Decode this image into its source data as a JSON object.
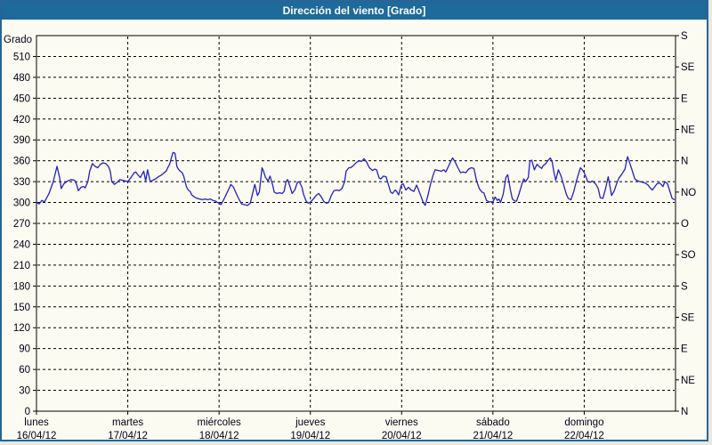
{
  "window": {
    "title": "Dirección del viento [Grado]"
  },
  "colors": {
    "titlebar_bg": "#1d6a9b",
    "titlebar_text": "#ffffff",
    "frame_border": "#2a6496",
    "background": "#fcfbf2",
    "grid": "#000000",
    "axis": "#000000",
    "tick_text": "#000014",
    "series_line": "#2222bb"
  },
  "chart_data": {
    "type": "line",
    "title": "Dirección del viento [Grado]",
    "ylabel_left": "Grado",
    "ylim": [
      0,
      540
    ],
    "y_left_ticks": [
      0,
      30,
      60,
      90,
      120,
      150,
      180,
      210,
      240,
      270,
      300,
      330,
      360,
      390,
      420,
      450,
      480,
      510
    ],
    "y_right_ticks": [
      {
        "deg": 540,
        "label": "S"
      },
      {
        "deg": 495,
        "label": "SE"
      },
      {
        "deg": 450,
        "label": "E"
      },
      {
        "deg": 405,
        "label": "NE"
      },
      {
        "deg": 360,
        "label": "N"
      },
      {
        "deg": 315,
        "label": "NO"
      },
      {
        "deg": 270,
        "label": "O"
      },
      {
        "deg": 225,
        "label": "SO"
      },
      {
        "deg": 180,
        "label": "S"
      },
      {
        "deg": 135,
        "label": "SE"
      },
      {
        "deg": 90,
        "label": "E"
      },
      {
        "deg": 45,
        "label": "NE"
      },
      {
        "deg": 0,
        "label": "N"
      }
    ],
    "x_days": [
      {
        "name": "lunes",
        "date": "16/04/12"
      },
      {
        "name": "martes",
        "date": "17/04/12"
      },
      {
        "name": "miércoles",
        "date": "18/04/12"
      },
      {
        "name": "jueves",
        "date": "19/04/12"
      },
      {
        "name": "viernes",
        "date": "20/04/12"
      },
      {
        "name": "sábado",
        "date": "21/04/12"
      },
      {
        "name": "domingo",
        "date": "22/04/12"
      }
    ],
    "x_range_hours": 168,
    "grid": "dashed",
    "legend": "none",
    "series": [
      {
        "name": "Dirección del viento",
        "units": "Grado",
        "points": [
          [
            0.0,
            300
          ],
          [
            0.7,
            298
          ],
          [
            1.4,
            303
          ],
          [
            2.1,
            301
          ],
          [
            3.3,
            313
          ],
          [
            4.4,
            330
          ],
          [
            5.4,
            352
          ],
          [
            6.1,
            335
          ],
          [
            6.5,
            320
          ],
          [
            7.2,
            327
          ],
          [
            8.2,
            331
          ],
          [
            9.1,
            333
          ],
          [
            10.0,
            332
          ],
          [
            10.5,
            327
          ],
          [
            11.0,
            317
          ],
          [
            11.7,
            322
          ],
          [
            12.4,
            323
          ],
          [
            12.8,
            321
          ],
          [
            13.5,
            330
          ],
          [
            14.0,
            345
          ],
          [
            14.7,
            356
          ],
          [
            15.4,
            352
          ],
          [
            16.1,
            350
          ],
          [
            16.8,
            355
          ],
          [
            17.5,
            357
          ],
          [
            18.2,
            356
          ],
          [
            18.9,
            352
          ],
          [
            19.4,
            345
          ],
          [
            19.8,
            330
          ],
          [
            20.5,
            326
          ],
          [
            21.2,
            329
          ],
          [
            21.9,
            333
          ],
          [
            22.6,
            332
          ],
          [
            23.3,
            331
          ],
          [
            24.0,
            330
          ],
          [
            24.7,
            335
          ],
          [
            25.7,
            343
          ],
          [
            26.1,
            344
          ],
          [
            26.8,
            339
          ],
          [
            27.3,
            336
          ],
          [
            27.8,
            341
          ],
          [
            28.2,
            345
          ],
          [
            28.7,
            331
          ],
          [
            29.2,
            347
          ],
          [
            29.9,
            330
          ],
          [
            30.6,
            332
          ],
          [
            31.3,
            334
          ],
          [
            32.0,
            337
          ],
          [
            32.7,
            339
          ],
          [
            33.4,
            342
          ],
          [
            34.1,
            345
          ],
          [
            34.5,
            350
          ],
          [
            35.0,
            355
          ],
          [
            35.5,
            365
          ],
          [
            35.9,
            372
          ],
          [
            36.4,
            371
          ],
          [
            36.6,
            365
          ],
          [
            36.9,
            352
          ],
          [
            37.3,
            348
          ],
          [
            37.8,
            345
          ],
          [
            38.3,
            343
          ],
          [
            38.7,
            338
          ],
          [
            39.4,
            323
          ],
          [
            39.9,
            318
          ],
          [
            40.4,
            316
          ],
          [
            40.8,
            311
          ],
          [
            41.5,
            308
          ],
          [
            42.2,
            306
          ],
          [
            42.9,
            305
          ],
          [
            43.6,
            304
          ],
          [
            44.3,
            305
          ],
          [
            45.0,
            304
          ],
          [
            45.7,
            305
          ],
          [
            46.4,
            303
          ],
          [
            47.1,
            302
          ],
          [
            47.6,
            300
          ],
          [
            48.1,
            299
          ],
          [
            48.5,
            297
          ],
          [
            49.2,
            304
          ],
          [
            49.9,
            312
          ],
          [
            50.6,
            320
          ],
          [
            51.1,
            326
          ],
          [
            51.8,
            322
          ],
          [
            52.5,
            313
          ],
          [
            53.2,
            305
          ],
          [
            53.9,
            298
          ],
          [
            54.6,
            297
          ],
          [
            55.5,
            296
          ],
          [
            56.2,
            299
          ],
          [
            56.9,
            315
          ],
          [
            57.4,
            326
          ],
          [
            58.1,
            310
          ],
          [
            58.6,
            315
          ],
          [
            59.3,
            350
          ],
          [
            59.7,
            345
          ],
          [
            60.2,
            336
          ],
          [
            60.9,
            331
          ],
          [
            61.4,
            338
          ],
          [
            62.1,
            325
          ],
          [
            62.5,
            315
          ],
          [
            63.2,
            313
          ],
          [
            63.9,
            314
          ],
          [
            64.6,
            313
          ],
          [
            65.1,
            316
          ],
          [
            65.6,
            330
          ],
          [
            66.0,
            333
          ],
          [
            66.7,
            322
          ],
          [
            67.2,
            313
          ],
          [
            67.9,
            318
          ],
          [
            68.6,
            329
          ],
          [
            69.1,
            330
          ],
          [
            69.8,
            322
          ],
          [
            70.2,
            312
          ],
          [
            70.9,
            302
          ],
          [
            71.4,
            299
          ],
          [
            72.1,
            301
          ],
          [
            72.8,
            305
          ],
          [
            73.5,
            310
          ],
          [
            74.2,
            313
          ],
          [
            74.9,
            308
          ],
          [
            75.6,
            301
          ],
          [
            76.3,
            299
          ],
          [
            76.8,
            300
          ],
          [
            77.5,
            310
          ],
          [
            78.2,
            317
          ],
          [
            78.9,
            318
          ],
          [
            79.6,
            317
          ],
          [
            80.3,
            320
          ],
          [
            81.0,
            330
          ],
          [
            81.4,
            345
          ],
          [
            82.1,
            350
          ],
          [
            82.6,
            350
          ],
          [
            83.3,
            353
          ],
          [
            83.8,
            356
          ],
          [
            84.2,
            358
          ],
          [
            84.9,
            360
          ],
          [
            85.4,
            359
          ],
          [
            86.1,
            363
          ],
          [
            86.8,
            358
          ],
          [
            87.3,
            352
          ],
          [
            87.7,
            349
          ],
          [
            88.4,
            346
          ],
          [
            88.9,
            348
          ],
          [
            89.4,
            347
          ],
          [
            90.1,
            335
          ],
          [
            90.5,
            334
          ],
          [
            91.2,
            338
          ],
          [
            91.9,
            337
          ],
          [
            92.4,
            328
          ],
          [
            93.1,
            315
          ],
          [
            93.6,
            313
          ],
          [
            94.3,
            318
          ],
          [
            94.7,
            316
          ],
          [
            95.2,
            311
          ],
          [
            95.9,
            325
          ],
          [
            96.4,
            327
          ],
          [
            97.1,
            318
          ],
          [
            97.8,
            322
          ],
          [
            98.5,
            318
          ],
          [
            99.2,
            316
          ],
          [
            99.9,
            325
          ],
          [
            100.3,
            320
          ],
          [
            101.0,
            310
          ],
          [
            101.7,
            300
          ],
          [
            102.2,
            296
          ],
          [
            102.9,
            310
          ],
          [
            103.6,
            327
          ],
          [
            104.3,
            340
          ],
          [
            104.8,
            347
          ],
          [
            105.7,
            346
          ],
          [
            106.4,
            345
          ],
          [
            107.1,
            347
          ],
          [
            107.6,
            344
          ],
          [
            108.3,
            352
          ],
          [
            109.0,
            360
          ],
          [
            109.4,
            364
          ],
          [
            110.1,
            358
          ],
          [
            110.8,
            350
          ],
          [
            111.5,
            343
          ],
          [
            112.2,
            344
          ],
          [
            112.9,
            343
          ],
          [
            113.6,
            348
          ],
          [
            114.3,
            350
          ],
          [
            115.0,
            349
          ],
          [
            115.7,
            331
          ],
          [
            116.4,
            320
          ],
          [
            117.1,
            315
          ],
          [
            117.6,
            314
          ],
          [
            118.3,
            303
          ],
          [
            119.0,
            301
          ],
          [
            119.5,
            301
          ],
          [
            120.0,
            301
          ],
          [
            120.6,
            308
          ],
          [
            121.1,
            303
          ],
          [
            121.6,
            305
          ],
          [
            122.0,
            300
          ],
          [
            122.7,
            312
          ],
          [
            123.4,
            336
          ],
          [
            123.9,
            340
          ],
          [
            124.6,
            318
          ],
          [
            125.1,
            305
          ],
          [
            125.8,
            302
          ],
          [
            126.2,
            302
          ],
          [
            126.9,
            313
          ],
          [
            127.6,
            326
          ],
          [
            128.1,
            334
          ],
          [
            128.6,
            330
          ],
          [
            129.3,
            336
          ],
          [
            129.7,
            359
          ],
          [
            130.2,
            361
          ],
          [
            130.9,
            347
          ],
          [
            131.6,
            355
          ],
          [
            132.1,
            352
          ],
          [
            132.8,
            349
          ],
          [
            133.2,
            353
          ],
          [
            133.9,
            356
          ],
          [
            134.4,
            360
          ],
          [
            135.1,
            364
          ],
          [
            135.6,
            358
          ],
          [
            136.0,
            345
          ],
          [
            136.5,
            332
          ],
          [
            137.2,
            347
          ],
          [
            137.9,
            338
          ],
          [
            138.6,
            325
          ],
          [
            139.3,
            312
          ],
          [
            139.8,
            306
          ],
          [
            140.5,
            304
          ],
          [
            141.2,
            315
          ],
          [
            141.9,
            330
          ],
          [
            142.6,
            343
          ],
          [
            143.0,
            350
          ],
          [
            143.5,
            347
          ],
          [
            144.0,
            343
          ],
          [
            144.4,
            338
          ],
          [
            144.9,
            330
          ],
          [
            145.6,
            329
          ],
          [
            146.1,
            331
          ],
          [
            146.8,
            328
          ],
          [
            147.2,
            325
          ],
          [
            147.7,
            320
          ],
          [
            148.2,
            307
          ],
          [
            148.9,
            306
          ],
          [
            149.6,
            320
          ],
          [
            150.3,
            337
          ],
          [
            150.7,
            325
          ],
          [
            151.2,
            310
          ],
          [
            151.9,
            317
          ],
          [
            152.4,
            325
          ],
          [
            153.1,
            335
          ],
          [
            153.8,
            340
          ],
          [
            154.7,
            348
          ],
          [
            155.4,
            366
          ],
          [
            155.9,
            358
          ],
          [
            156.6,
            346
          ],
          [
            157.3,
            334
          ],
          [
            158.0,
            331
          ],
          [
            158.7,
            330
          ],
          [
            159.4,
            329
          ],
          [
            160.1,
            328
          ],
          [
            160.8,
            325
          ],
          [
            161.2,
            322
          ],
          [
            161.9,
            318
          ],
          [
            162.6,
            323
          ],
          [
            163.1,
            327
          ],
          [
            163.8,
            328
          ],
          [
            164.2,
            326
          ],
          [
            164.7,
            323
          ],
          [
            165.2,
            330
          ],
          [
            165.9,
            327
          ],
          [
            166.4,
            318
          ],
          [
            167.1,
            306
          ],
          [
            167.8,
            304
          ]
        ]
      }
    ]
  }
}
